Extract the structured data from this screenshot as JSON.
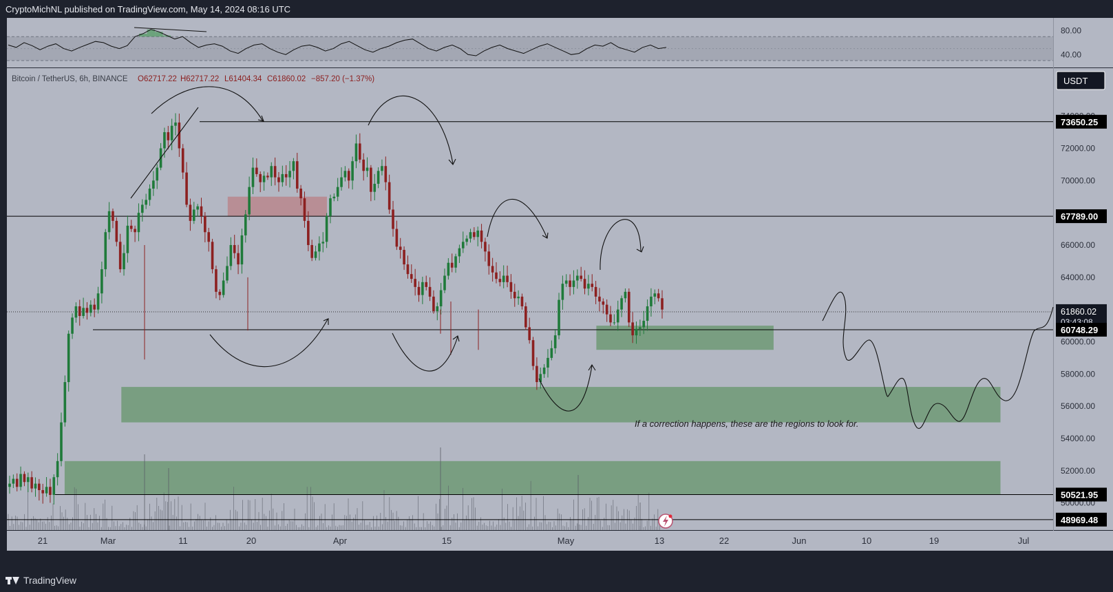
{
  "header": {
    "publish_info": "CryptoMichNL published on TradingView.com, May 14, 2024 08:16 UTC"
  },
  "footer": {
    "brand": "TradingView"
  },
  "symbol_info": {
    "name": "Bitcoin / TetherUS, 6h, BINANCE",
    "open": "O62717.22",
    "high": "H62717.22",
    "low": "L61404.34",
    "close": "C61860.02",
    "change": "−857.20 (−1.37%)"
  },
  "currency_label": "USDT",
  "countdown": "03:43:08",
  "annotation_text": "If a correction happens, these are the regions to look for.",
  "colors": {
    "up": "#1f7a3a",
    "down": "#8c2020",
    "zone_green": "#6f9a76",
    "zone_red": "#b88a90",
    "panel_bg": "#b3b7c3"
  },
  "chart_data": [
    {
      "type": "line",
      "name": "RSI",
      "ylim": [
        20,
        90
      ],
      "y_ticks": [
        "80.00",
        "40.00"
      ],
      "bands": [
        70,
        30
      ],
      "values": [
        56,
        52,
        60,
        55,
        48,
        54,
        58,
        50,
        46,
        52,
        57,
        62,
        60,
        54,
        50,
        55,
        70,
        75,
        82,
        78,
        72,
        66,
        70,
        60,
        52,
        56,
        58,
        54,
        46,
        42,
        50,
        56,
        58,
        50,
        44,
        40,
        48,
        54,
        56,
        52,
        46,
        50,
        58,
        62,
        55,
        48,
        44,
        50,
        54,
        60,
        64,
        66,
        58,
        50,
        46,
        52,
        56,
        50,
        40,
        38,
        46,
        52,
        56,
        50,
        46,
        42,
        48,
        54,
        58,
        52,
        46,
        40,
        42,
        50,
        56,
        54,
        60,
        52,
        48,
        44,
        52,
        56,
        50,
        52
      ]
    },
    {
      "type": "bar",
      "name": "Bitcoin / TetherUS",
      "interval": "6h",
      "exchange": "BINANCE",
      "y_axis_ticks": [
        74000,
        72000,
        70000,
        68000,
        66000,
        64000,
        62000,
        60000,
        58000,
        56000,
        54000,
        52000,
        50000
      ],
      "ylim": [
        48000,
        76000
      ],
      "x_tick_labels": [
        "21",
        "Mar",
        "11",
        "20",
        "Apr",
        "15",
        "May",
        "13",
        "22",
        "Jun",
        "10",
        "19",
        "Jul"
      ],
      "price_levels": [
        {
          "label": "73650.25",
          "value": 73650.25
        },
        {
          "label": "67789.00",
          "value": 67789.0
        },
        {
          "label": "61860.02",
          "value": 61860.02
        },
        {
          "label": "60748.29",
          "value": 60748.29
        },
        {
          "label": "50521.95",
          "value": 50521.95
        },
        {
          "label": "48969.48",
          "value": 48969.48
        }
      ],
      "zones": [
        {
          "name": "resistance",
          "color": "red",
          "from": "2024-03-18",
          "to": "2024-04-01",
          "low": 67800,
          "high": 69000
        },
        {
          "name": "support-1",
          "color": "green",
          "from": "2024-05-09",
          "to": "2024-06-03",
          "low": 59500,
          "high": 61000
        },
        {
          "name": "support-2",
          "color": "green",
          "from": "2024-03-03",
          "to": "2024-07-05",
          "low": 55000,
          "high": 57200
        },
        {
          "name": "support-3",
          "color": "green",
          "from": "2024-02-24",
          "to": "2024-07-05",
          "low": 50500,
          "high": 52600
        }
      ],
      "closes": [
        51200,
        51500,
        51000,
        51800,
        51300,
        51600,
        50900,
        51200,
        50800,
        50600,
        51000,
        50500,
        51600,
        52600,
        55000,
        57500,
        60500,
        61500,
        62200,
        61600,
        62100,
        61800,
        62300,
        62000,
        63000,
        64500,
        66800,
        68100,
        67500,
        66200,
        64500,
        65500,
        67200,
        67000,
        66800,
        68000,
        68500,
        68800,
        69500,
        70000,
        70800,
        72000,
        73000,
        72500,
        73400,
        73600,
        72000,
        70500,
        68500,
        67500,
        68200,
        68400,
        67800,
        66800,
        66200,
        64500,
        63100,
        62900,
        63800,
        64700,
        66000,
        65500,
        64800,
        66600,
        67900,
        69600,
        70800,
        70400,
        69900,
        70300,
        70200,
        70900,
        70200,
        69900,
        70400,
        70200,
        70600,
        71200,
        69500,
        68900,
        67500,
        66000,
        65200,
        65600,
        66100,
        66200,
        67800,
        68900,
        69000,
        69600,
        70200,
        70600,
        70000,
        71200,
        72300,
        71300,
        70600,
        70800,
        69300,
        69800,
        70600,
        70900,
        69900,
        68200,
        67000,
        65900,
        65700,
        64800,
        64200,
        63900,
        63400,
        62900,
        63700,
        63400,
        62800,
        61900,
        62200,
        63200,
        64100,
        64900,
        64600,
        65300,
        65800,
        66200,
        66400,
        66800,
        66500,
        66900,
        66200,
        65600,
        64700,
        64300,
        63900,
        63700,
        64100,
        63700,
        63100,
        62700,
        62800,
        62200,
        60900,
        60100,
        58500,
        57500,
        58000,
        58400,
        59000,
        59600,
        60400,
        62600,
        63600,
        63800,
        63400,
        63800,
        64100,
        63900,
        63300,
        63600,
        63400,
        62800,
        62500,
        62300,
        61700,
        61200,
        61200,
        62000,
        62700,
        63100,
        61200,
        60400,
        60800,
        60900,
        61300,
        62200,
        62800,
        63000,
        62700,
        62000
      ]
    }
  ]
}
